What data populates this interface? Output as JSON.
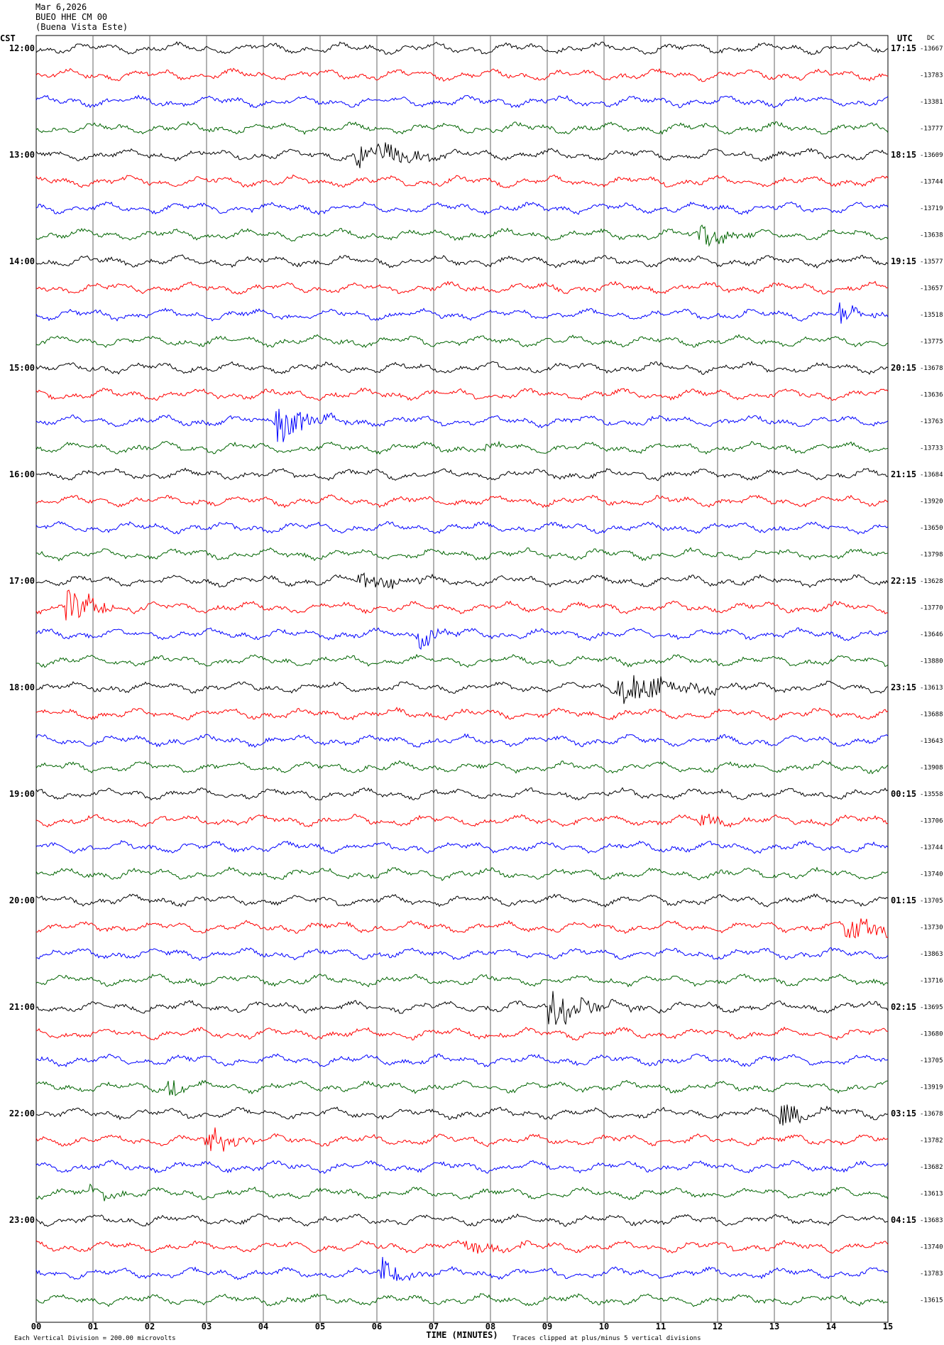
{
  "header": {
    "date": "Mar 6,2026",
    "station": "BUEO HHE CM 00",
    "location": "(Buena Vista Este)"
  },
  "left_axis": {
    "title": "CST",
    "labels": [
      "12:00",
      "13:00",
      "14:00",
      "15:00",
      "16:00",
      "17:00",
      "18:00",
      "19:00",
      "20:00",
      "21:00",
      "22:00",
      "23:00"
    ]
  },
  "right_axis": {
    "title": "UTC",
    "labels": [
      "17:15",
      "18:15",
      "19:15",
      "20:15",
      "21:15",
      "22:15",
      "23:15",
      "00:15",
      "01:15",
      "02:15",
      "03:15",
      "04:15"
    ]
  },
  "dc": {
    "title": "DC",
    "values": [
      -13667,
      -13783,
      -13381,
      -13777,
      -13609,
      -13744,
      -13719,
      -13638,
      -13577,
      -13657,
      -13518,
      -13775,
      -13678,
      -13636,
      -13763,
      -13733,
      -13684,
      -13920,
      -13650,
      -13798,
      -13628,
      -13770,
      -13646,
      -13880,
      -13613,
      -13688,
      -13643,
      -13908,
      -13558,
      -13706,
      -13744,
      -13740,
      -13705,
      -13730,
      -13863,
      -13716,
      -13695,
      -13680,
      -13705,
      -13919,
      -13678,
      -13782,
      -13682,
      -13613,
      -13683,
      -13740,
      -13783,
      -13615
    ]
  },
  "x_axis": {
    "title": "TIME (MINUTES)",
    "ticks": [
      "00",
      "01",
      "02",
      "03",
      "04",
      "05",
      "06",
      "07",
      "08",
      "09",
      "10",
      "11",
      "12",
      "13",
      "14",
      "15"
    ]
  },
  "footer": {
    "scale": "Each Vertical Division =  200.00 microvolts",
    "clip": "Traces clipped at plus/minus 5 vertical divisions"
  },
  "trace_colors": [
    "#000000",
    "#ff0000",
    "#0000ff",
    "#006400"
  ]
}
